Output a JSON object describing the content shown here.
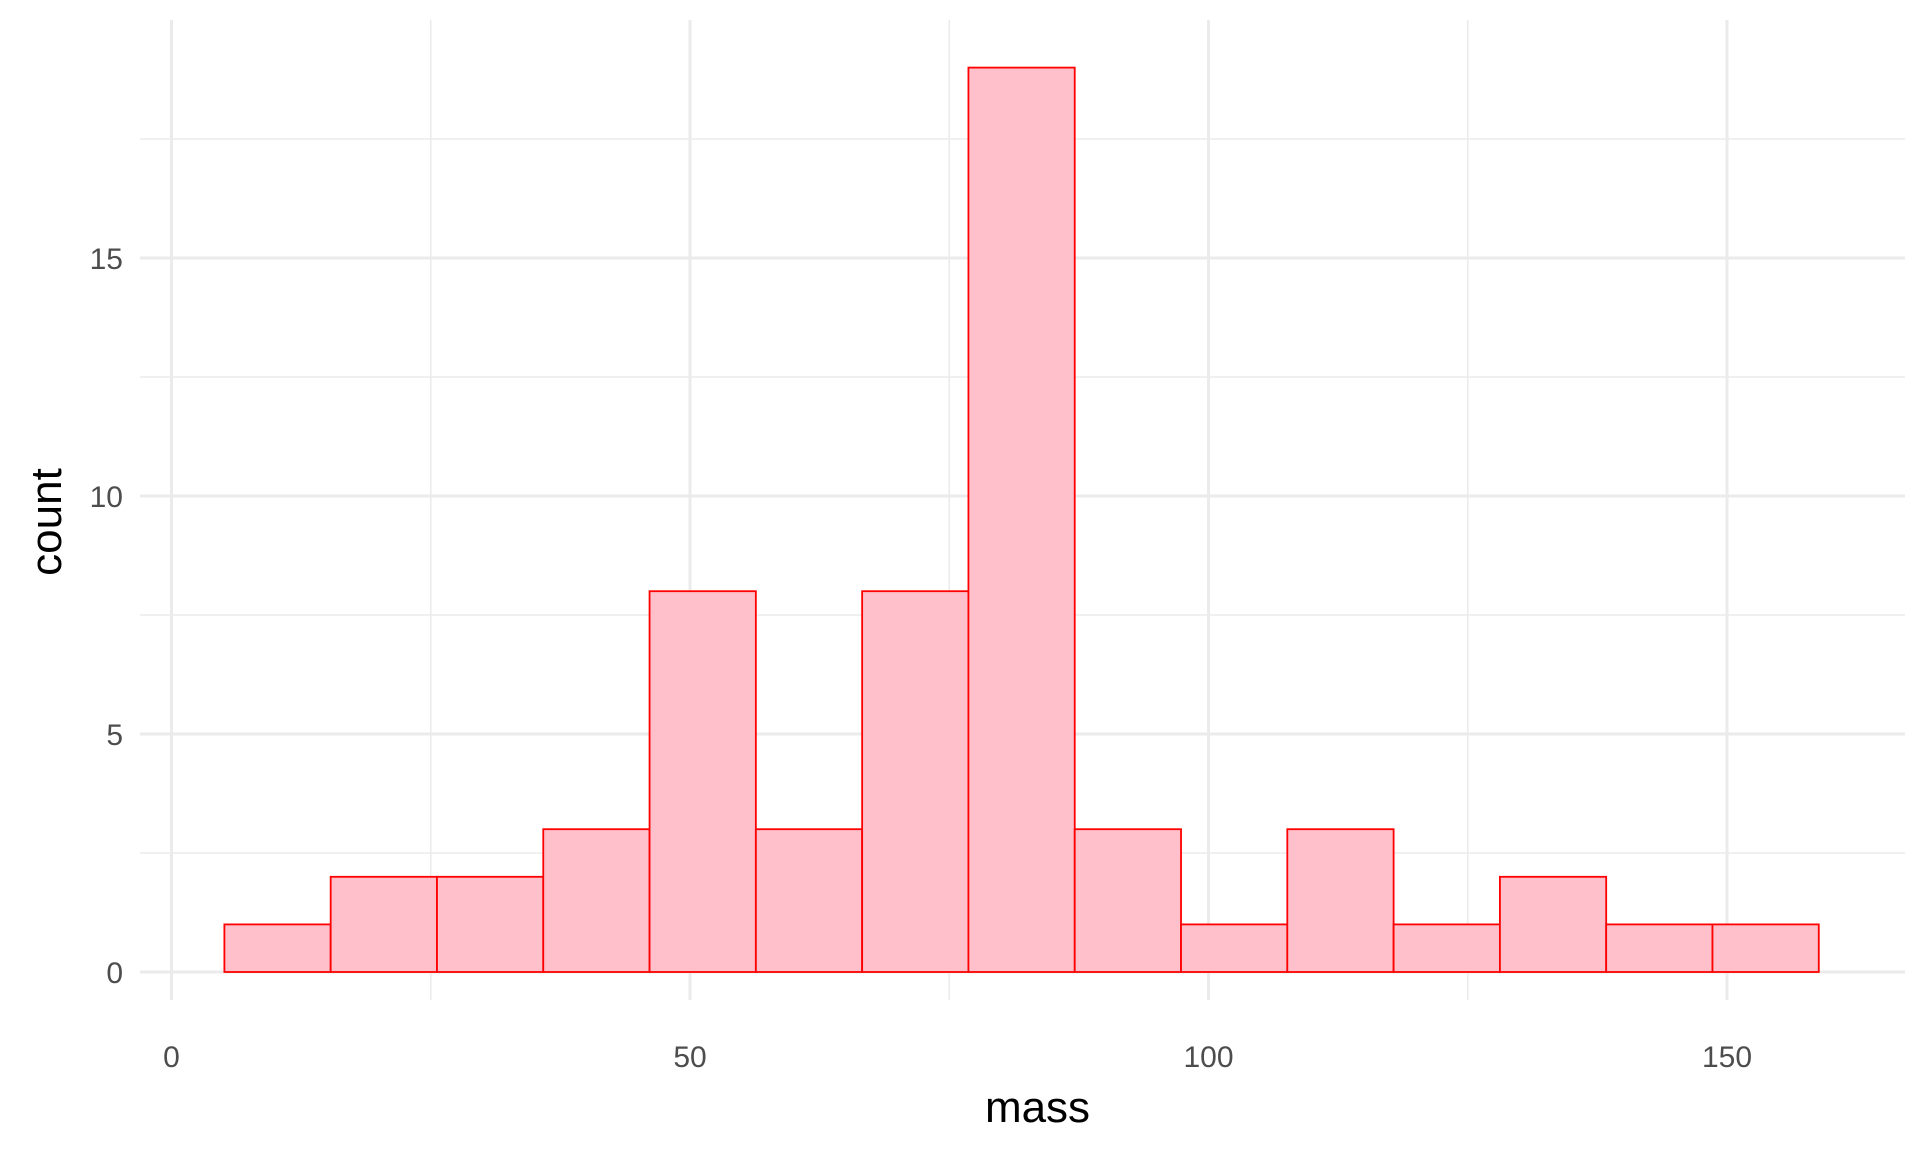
{
  "chart_data": {
    "type": "bar",
    "subtype": "histogram",
    "title": "",
    "xlabel": "mass",
    "ylabel": "count",
    "xlim": [
      0,
      163
    ],
    "ylim": [
      0,
      19.9
    ],
    "x_ticks": [
      0,
      50,
      100,
      150
    ],
    "y_ticks": [
      0,
      5,
      10,
      15
    ],
    "grid": true,
    "colors": {
      "fill": "#ffc0cb",
      "stroke": "#ff0000"
    },
    "bins": [
      {
        "x0": 5.1,
        "x1": 15.35,
        "count": 1
      },
      {
        "x0": 15.35,
        "x1": 25.6,
        "count": 2
      },
      {
        "x0": 25.6,
        "x1": 35.85,
        "count": 2
      },
      {
        "x0": 35.85,
        "x1": 46.1,
        "count": 3
      },
      {
        "x0": 46.1,
        "x1": 56.35,
        "count": 8
      },
      {
        "x0": 56.35,
        "x1": 66.6,
        "count": 3
      },
      {
        "x0": 66.6,
        "x1": 76.85,
        "count": 8
      },
      {
        "x0": 76.85,
        "x1": 87.1,
        "count": 19
      },
      {
        "x0": 87.1,
        "x1": 97.35,
        "count": 3
      },
      {
        "x0": 97.35,
        "x1": 107.6,
        "count": 1
      },
      {
        "x0": 107.6,
        "x1": 117.85,
        "count": 3
      },
      {
        "x0": 117.85,
        "x1": 128.1,
        "count": 1
      },
      {
        "x0": 128.1,
        "x1": 138.35,
        "count": 2
      },
      {
        "x0": 138.35,
        "x1": 148.6,
        "count": 1
      },
      {
        "x0": 148.6,
        "x1": 158.85,
        "count": 1
      }
    ]
  }
}
